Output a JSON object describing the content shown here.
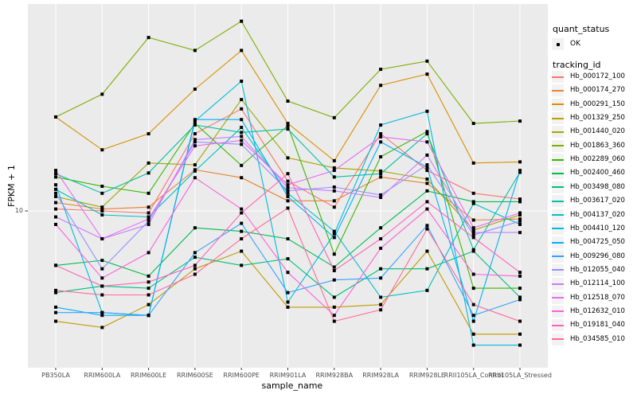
{
  "chart_data": {
    "type": "line",
    "title": "",
    "xlabel": "sample_name",
    "ylabel": "FPKM + 1",
    "y_scale": "log10",
    "ylim_log": [
      2.0,
      95.0
    ],
    "y_ticks": [
      10
    ],
    "y_tick_labels": [
      "10"
    ],
    "grid": true,
    "panel_bg": "#EBEBEB",
    "grid_color": "#FFFFFF",
    "tick_label_color": "#4D4D4D",
    "point_color": "#000000",
    "legend_position": "right",
    "categories": [
      "PB350LA",
      "RRIM600LA",
      "RRIM600LE",
      "RRIM600SE",
      "RRIM600PE",
      "RRIM901LA",
      "RRIM928BA",
      "RRIM928LA",
      "RRIM928LE",
      "RRII105LA_Control",
      "RRII105LA_Stressed"
    ],
    "series": [
      {
        "name": "Hb_000172_100",
        "color": "#F8766D",
        "values": [
          10.2,
          10.0,
          9.8,
          22.2,
          28.7,
          13.6,
          10.4,
          22.2,
          15.2,
          12.0,
          11.3
        ]
      },
      {
        "name": "Hb_000174_270",
        "color": "#EA8331",
        "values": [
          10.9,
          10.2,
          10.4,
          15.3,
          14.1,
          11.1,
          11.1,
          14.2,
          13.3,
          9.1,
          9.2
        ]
      },
      {
        "name": "Hb_000291_150",
        "color": "#D89000",
        "values": [
          26.4,
          18.8,
          22.2,
          35.2,
          52.5,
          24.7,
          16.8,
          36.6,
          41.1,
          16.4,
          16.6
        ]
      },
      {
        "name": "Hb_001329_250",
        "color": "#C09B00",
        "values": [
          3.2,
          3.0,
          3.8,
          5.5,
          6.6,
          3.7,
          3.7,
          3.8,
          6.6,
          2.8,
          2.8
        ]
      },
      {
        "name": "Hb_001440_020",
        "color": "#A3A500",
        "values": [
          11.6,
          10.4,
          16.4,
          16.1,
          31.6,
          17.3,
          15.6,
          15.1,
          13.9,
          8.2,
          9.6
        ]
      },
      {
        "name": "Hb_001863_360",
        "color": "#7CAE00",
        "values": [
          26.4,
          33.4,
          60.0,
          52.5,
          71.0,
          31.1,
          26.2,
          43.2,
          47.0,
          24.7,
          25.3
        ]
      },
      {
        "name": "Hb_002289_060",
        "color": "#39B600",
        "values": [
          14.2,
          12.9,
          12.0,
          24.7,
          16.0,
          24.1,
          6.4,
          17.5,
          22.7,
          4.5,
          4.5
        ]
      },
      {
        "name": "Hb_002400_460",
        "color": "#00BB4E",
        "values": [
          5.7,
          6.0,
          5.1,
          8.4,
          8.1,
          7.5,
          5.6,
          8.4,
          12.3,
          11.0,
          11.0
        ]
      },
      {
        "name": "Hb_003498_080",
        "color": "#00BF7D",
        "values": [
          4.3,
          4.6,
          4.5,
          6.2,
          5.7,
          6.1,
          4.1,
          5.5,
          5.5,
          6.6,
          4.1
        ]
      },
      {
        "name": "Hb_003617_020",
        "color": "#00C1A3",
        "values": [
          14.7,
          12.0,
          14.8,
          24.3,
          22.5,
          23.3,
          14.2,
          14.7,
          22.2,
          6.7,
          14.9
        ]
      },
      {
        "name": "Hb_004137_020",
        "color": "#00BFC4",
        "values": [
          12.5,
          9.6,
          9.4,
          15.1,
          23.7,
          12.0,
          8.1,
          4.1,
          4.4,
          10.8,
          8.7
        ]
      },
      {
        "name": "Hb_004410_120",
        "color": "#00BAE0",
        "values": [
          13.1,
          3.5,
          3.4,
          25.3,
          38.2,
          3.9,
          7.9,
          24.3,
          28.0,
          2.5,
          2.5
        ]
      },
      {
        "name": "Hb_004725_050",
        "color": "#00B0F6",
        "values": [
          3.7,
          3.4,
          3.4,
          25.7,
          25.7,
          11.6,
          7.6,
          20.4,
          15.7,
          3.2,
          15.2
        ]
      },
      {
        "name": "Hb_009296_080",
        "color": "#35A2FF",
        "values": [
          3.5,
          3.5,
          3.4,
          6.5,
          8.8,
          4.3,
          4.9,
          5.0,
          8.6,
          3.4,
          4.0
        ]
      },
      {
        "name": "Hb_012055_040",
        "color": "#9590FF",
        "values": [
          12.0,
          5.5,
          9.0,
          20.4,
          19.9,
          12.3,
          12.8,
          11.8,
          16.1,
          7.8,
          9.0
        ]
      },
      {
        "name": "Hb_012114_100",
        "color": "#C77CFF",
        "values": [
          9.4,
          7.5,
          8.7,
          20.9,
          21.6,
          12.7,
          12.3,
          11.5,
          17.8,
          8.0,
          8.0
        ]
      },
      {
        "name": "Hb_012518_070",
        "color": "#E76BF3",
        "values": [
          15.2,
          7.5,
          9.2,
          19.6,
          20.7,
          13.1,
          15.2,
          21.5,
          20.4,
          8.4,
          9.8
        ]
      },
      {
        "name": "Hb_012632_010",
        "color": "#FA62DB",
        "values": [
          8.7,
          5.0,
          6.5,
          14.1,
          10.2,
          5.3,
          3.4,
          6.8,
          10.2,
          5.2,
          5.1
        ]
      },
      {
        "name": "Hb_019181_040",
        "color": "#FF62BC",
        "values": [
          5.7,
          4.6,
          4.8,
          5.7,
          9.8,
          14.7,
          5.4,
          7.5,
          11.0,
          7.6,
          5.3
        ]
      },
      {
        "name": "Hb_034585_010",
        "color": "#FF6A98",
        "values": [
          4.4,
          4.2,
          4.2,
          5.2,
          7.5,
          10.3,
          3.2,
          3.6,
          8.3,
          3.8,
          3.2
        ]
      }
    ],
    "legend": {
      "quant_status_title": "quant_status",
      "quant_status_items": [
        {
          "label": "OK",
          "symbol": "point"
        }
      ],
      "tracking_title": "tracking_id"
    }
  }
}
